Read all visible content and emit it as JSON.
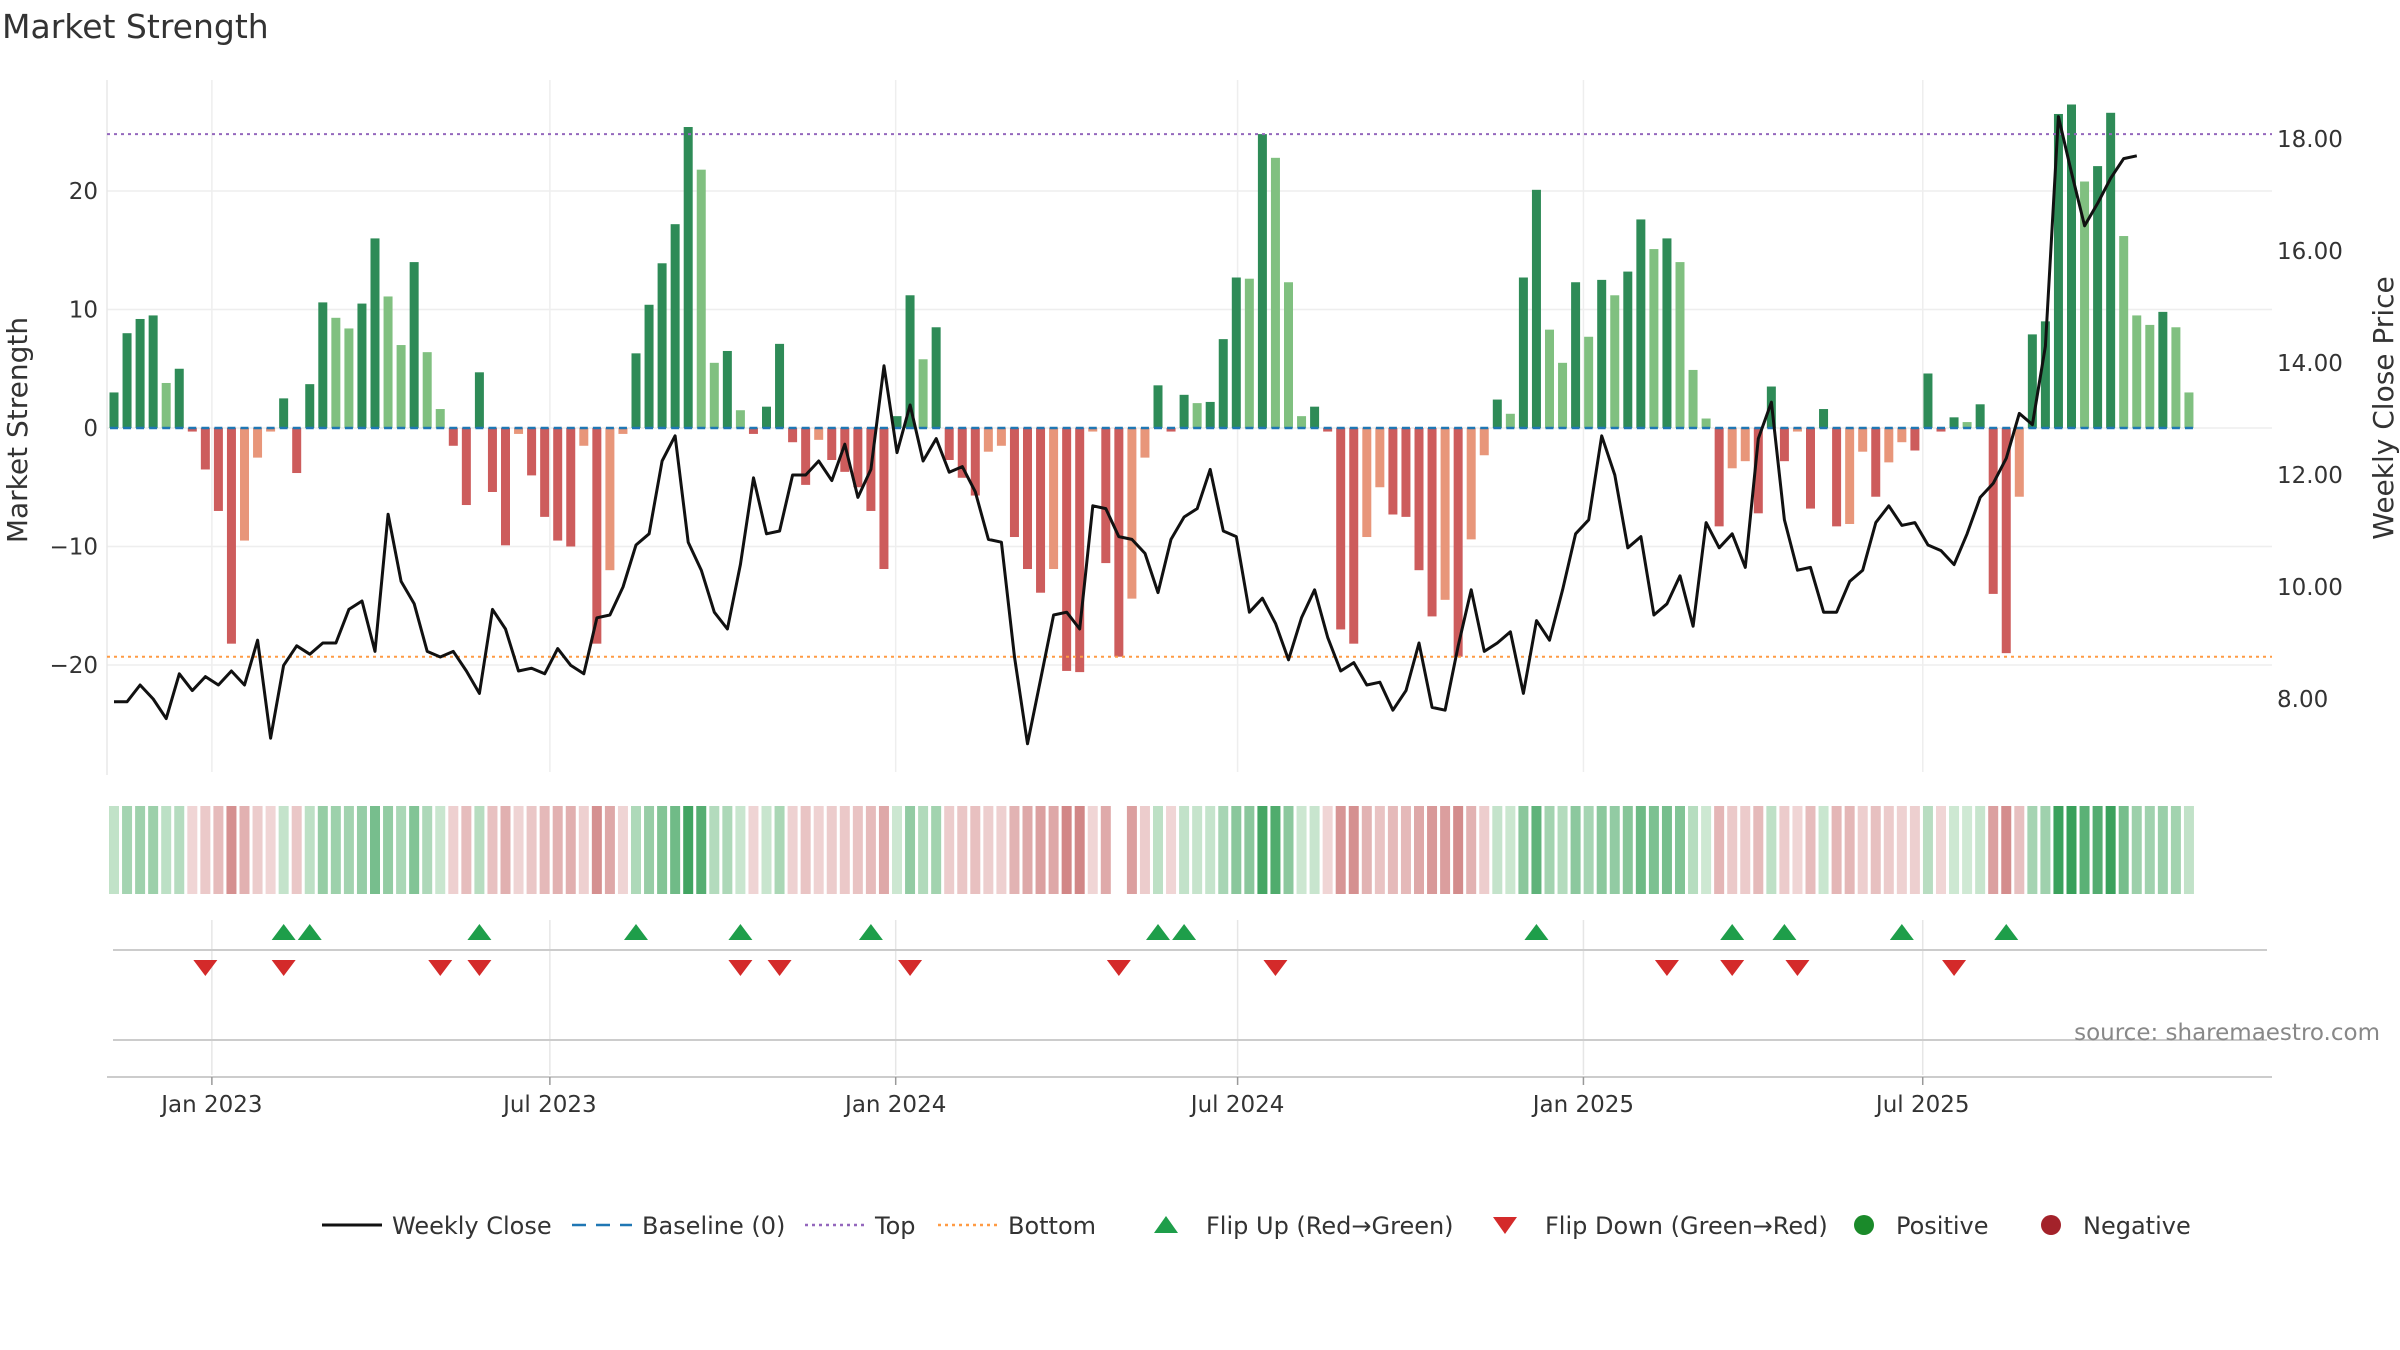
{
  "chart_data": {
    "type": "bar+line",
    "title": "Market Strength",
    "ylabel": "Market Strength",
    "y2label": "Weekly Close Price",
    "ylim": [
      -29,
      29
    ],
    "y2lim": [
      6.7,
      19.1
    ],
    "yticks": [
      "20",
      "10",
      "0",
      "−10",
      "−20"
    ],
    "y2ticks": [
      "18.00",
      "16.00",
      "14.00",
      "12.00",
      "10.00",
      "8.00"
    ],
    "x_labels": [
      "Jan 2023",
      "Jul 2023",
      "Jan 2024",
      "Jul 2024",
      "Jan 2025",
      "Jul 2025"
    ],
    "x_label_weeks": [
      7.5,
      33.4,
      59.9,
      86.1,
      112.6,
      138.6
    ],
    "top_line": 24.8,
    "bottom_line": -19.3,
    "strength": [
      3,
      8,
      9.2,
      9.5,
      3.8,
      5,
      -0.3,
      -3.5,
      -7,
      -18.2,
      -9.5,
      -2.5,
      -0.3,
      2.5,
      -3.8,
      3.7,
      10.6,
      9.3,
      8.4,
      10.5,
      16,
      11.1,
      7,
      14,
      6.4,
      1.6,
      -1.5,
      -6.5,
      4.7,
      -5.4,
      -9.9,
      -0.5,
      -4,
      -7.5,
      -9.5,
      -10,
      -1.5,
      -18.2,
      -12,
      -0.5,
      6.3,
      10.4,
      13.9,
      17.2,
      25.4,
      21.8,
      5.5,
      6.5,
      1.5,
      -0.5,
      1.8,
      7.1,
      -1.2,
      -4.8,
      -1,
      -2.7,
      -3.7,
      -5,
      -7,
      -11.9,
      1,
      11.2,
      5.8,
      8.5,
      -2.7,
      -4.2,
      -5.7,
      -2,
      -1.5,
      -9.2,
      -11.9,
      -13.9,
      -11.9,
      -20.5,
      -20.6,
      -0.3,
      -11.4,
      -19.3,
      -14.4,
      -2.5,
      3.6,
      -0.3,
      2.8,
      2.1,
      2.2,
      7.5,
      12.7,
      12.6,
      24.8,
      22.8,
      12.3,
      1,
      1.8,
      -0.3,
      -17,
      -18.2,
      -9.2,
      -5,
      -7.3,
      -7.5,
      -12,
      -15.9,
      -14.5,
      -19.3,
      -9.4,
      -2.3,
      2.4,
      1.2,
      12.7,
      20.1,
      8.3,
      5.5,
      12.3,
      7.7,
      12.5,
      11.2,
      13.2,
      17.6,
      15.1,
      16,
      14,
      4.9,
      0.8,
      -8.3,
      -3.4,
      -2.8,
      -7.2,
      3.5,
      -2.8,
      -0.3,
      -6.8,
      1.6,
      -8.3,
      -8.1,
      -2,
      -5.8,
      -2.9,
      -1.2,
      -1.9,
      4.6,
      -0.3,
      0.9,
      0.5,
      2,
      -14,
      -19,
      -5.8,
      7.9,
      9,
      26.5,
      27.3,
      20.8,
      22.1,
      26.6,
      16.2,
      9.5,
      8.7,
      9.8,
      8.5,
      3
    ],
    "close": [
      7.95,
      7.95,
      8.25,
      8,
      7.65,
      8.45,
      8.15,
      8.4,
      8.25,
      8.5,
      8.25,
      9.05,
      7.3,
      8.6,
      8.95,
      8.8,
      9,
      9,
      9.6,
      9.75,
      8.85,
      11.3,
      10.1,
      9.7,
      8.85,
      8.75,
      8.85,
      8.5,
      8.1,
      9.6,
      9.25,
      8.5,
      8.55,
      8.45,
      8.9,
      8.6,
      8.45,
      9.45,
      9.5,
      10,
      10.75,
      10.95,
      12.25,
      12.7,
      10.8,
      10.3,
      9.55,
      9.25,
      10.4,
      11.95,
      10.95,
      11,
      12,
      12,
      12.25,
      11.9,
      12.55,
      11.6,
      12.1,
      13.95,
      12.4,
      13.25,
      12.25,
      12.65,
      12.05,
      12.15,
      11.7,
      10.85,
      10.8,
      8.75,
      7.2,
      8.35,
      9.5,
      9.55,
      9.25,
      11.45,
      11.4,
      10.9,
      10.85,
      10.6,
      9.9,
      10.85,
      11.25,
      11.4,
      12.1,
      11,
      10.9,
      9.55,
      9.8,
      9.35,
      8.7,
      9.45,
      9.95,
      9.1,
      8.5,
      8.65,
      8.25,
      8.3,
      7.8,
      8.15,
      9,
      7.85,
      7.8,
      8.95,
      9.95,
      8.85,
      9,
      9.2,
      8.1,
      9.4,
      9.05,
      9.95,
      10.95,
      11.2,
      12.7,
      12,
      10.7,
      10.9,
      9.5,
      9.7,
      10.2,
      9.3,
      11.15,
      10.7,
      10.95,
      10.35,
      12.65,
      13.3,
      11.2,
      10.3,
      10.35,
      9.55,
      9.55,
      10.1,
      10.3,
      11.15,
      11.45,
      11.1,
      11.15,
      10.75,
      10.65,
      10.4,
      10.95,
      11.6,
      11.85,
      12.3,
      13.1,
      12.9,
      14.3,
      18.4,
      17.4,
      16.45,
      16.85,
      17.3,
      17.65,
      17.7
    ],
    "heat_gaps": [
      77
    ],
    "flip_up_weeks": [
      13,
      15,
      28,
      40,
      48,
      58,
      80,
      82,
      109,
      124,
      128,
      137,
      145
    ],
    "flip_down_weeks": [
      7,
      13,
      25,
      28,
      48,
      51,
      61,
      77,
      89,
      119,
      124,
      129,
      141
    ],
    "legend": [
      {
        "label": "Weekly Close",
        "symbol": "line",
        "color": "#111111"
      },
      {
        "label": "Baseline (0)",
        "symbol": "dash",
        "color": "#1f77b4"
      },
      {
        "label": "Top",
        "symbol": "dot",
        "color": "#9467bd"
      },
      {
        "label": "Bottom",
        "symbol": "dot",
        "color": "#ff9b44"
      },
      {
        "label": "Flip Up (Red→Green)",
        "symbol": "triangle-up",
        "color": "#1e9e4a"
      },
      {
        "label": "Flip Down (Green→Red)",
        "symbol": "triangle-down",
        "color": "#d42a2a"
      },
      {
        "label": "Positive",
        "symbol": "circle",
        "color": "#1a8a2a"
      },
      {
        "label": "Negative",
        "symbol": "circle",
        "color": "#a3222a"
      }
    ],
    "source": "source: sharemaestro.com"
  }
}
